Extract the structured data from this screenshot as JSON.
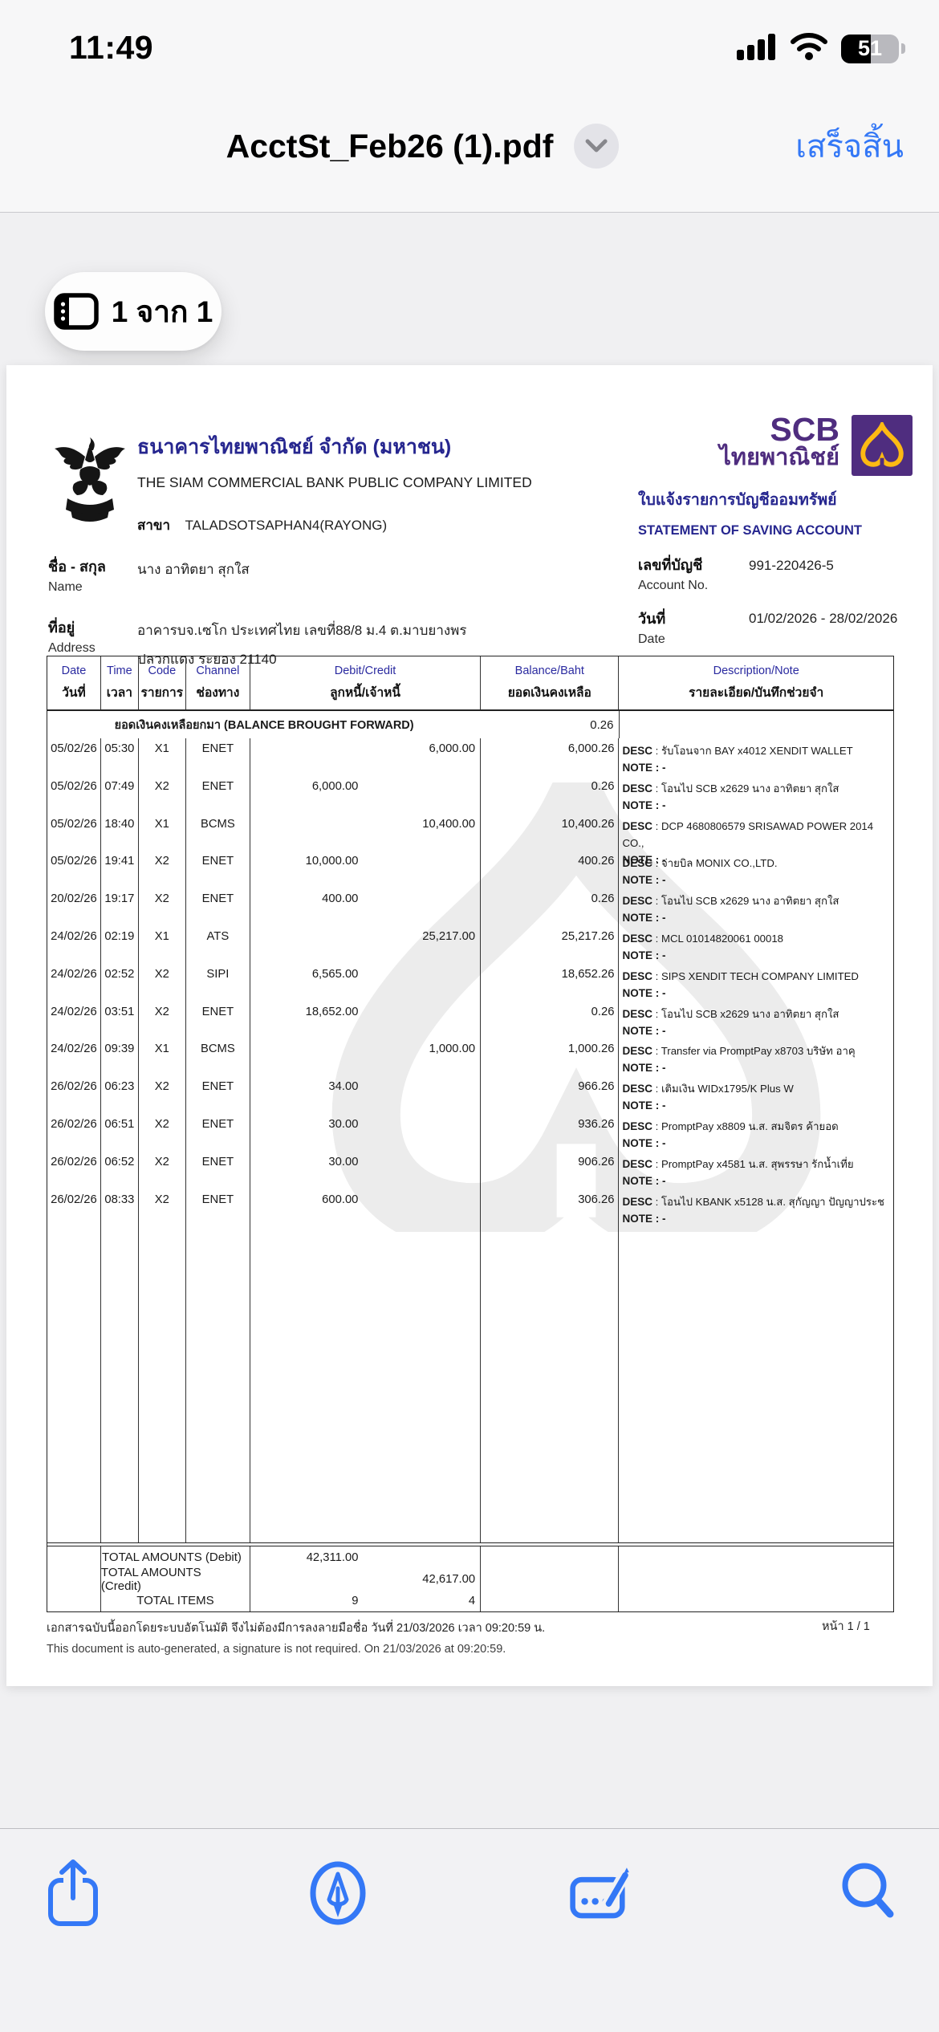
{
  "status_bar": {
    "time": "11:49",
    "battery_percent": "51"
  },
  "title_bar": {
    "filename": "AcctSt_Feb26 (1).pdf",
    "done_label": "เสร็จสิ้น"
  },
  "page_indicator": {
    "label": "1 จาก 1"
  },
  "bank_header": {
    "name_th": "ธนาคารไทยพาณิชย์ จำกัด (มหาชน)",
    "name_en": "THE SIAM COMMERCIAL BANK PUBLIC COMPANY LIMITED",
    "branch_label": "สาขา",
    "branch_value": "TALADSOTSAPHAN4(RAYONG)",
    "logo_word_top": "SCB",
    "logo_word_bottom": "ไทยพาณิชย์",
    "statement_title_th": "ใบแจ้งรายการบัญชีออมทรัพย์",
    "statement_title_en": "STATEMENT OF SAVING ACCOUNT"
  },
  "account_info": {
    "name_label_th": "ชื่อ - สกุล",
    "name_label_en": "Name",
    "name_value": "นาง อาทิตยา สุกใส",
    "address_label_th": "ที่อยู่",
    "address_label_en": "Address",
    "address_line1": "อาคารบจ.เซโก ประเทศไทย เลขที่88/8 ม.4 ต.มาบยางพร",
    "address_line2": "ปลวกแดง ระยอง 21140",
    "account_no_label_th": "เลขที่บัญชี",
    "account_no_label_en": "Account No.",
    "account_no": "991-220426-5",
    "date_label_th": "วันที่",
    "date_label_en": "Date",
    "date_range": "01/02/2026 - 28/02/2026"
  },
  "table": {
    "columns": [
      {
        "en": "Date",
        "th": "วันที่"
      },
      {
        "en": "Time",
        "th": "เวลา"
      },
      {
        "en": "Code",
        "th": "รายการ"
      },
      {
        "en": "Channel",
        "th": "ช่องทาง"
      },
      {
        "en": "Debit/Credit",
        "th": "ลูกหนี้/เจ้าหนี้"
      },
      {
        "en": "Balance/Baht",
        "th": "ยอดเงินคงเหลือ"
      },
      {
        "en": "Description/Note",
        "th": "รายละเอียด/บันทึกช่วยจำ"
      }
    ],
    "bbf_label": "ยอดเงินคงเหลือยกมา (BALANCE BROUGHT FORWARD)",
    "bbf_balance": "0.26",
    "desc_label": "DESC",
    "note_line": "NOTE : -"
  },
  "transactions": [
    {
      "date": "05/02/26",
      "time": "05:30",
      "code": "X1",
      "channel": "ENET",
      "debit": "",
      "credit": "6,000.00",
      "balance": "6,000.26",
      "desc": "รับโอนจาก BAY x4012 XENDIT WALLET"
    },
    {
      "date": "05/02/26",
      "time": "07:49",
      "code": "X2",
      "channel": "ENET",
      "debit": "6,000.00",
      "credit": "",
      "balance": "0.26",
      "desc": "โอนไป SCB x2629 นาง อาทิตยา สุกใส"
    },
    {
      "date": "05/02/26",
      "time": "18:40",
      "code": "X1",
      "channel": "BCMS",
      "debit": "",
      "credit": "10,400.00",
      "balance": "10,400.26",
      "desc": "DCP 4680806579 SRISAWAD POWER 2014 CO.,"
    },
    {
      "date": "05/02/26",
      "time": "19:41",
      "code": "X2",
      "channel": "ENET",
      "debit": "10,000.00",
      "credit": "",
      "balance": "400.26",
      "desc": "จ่ายบิล MONIX CO.,LTD."
    },
    {
      "date": "20/02/26",
      "time": "19:17",
      "code": "X2",
      "channel": "ENET",
      "debit": "400.00",
      "credit": "",
      "balance": "0.26",
      "desc": "โอนไป SCB x2629 นาง อาทิตยา สุกใส"
    },
    {
      "date": "24/02/26",
      "time": "02:19",
      "code": "X1",
      "channel": "ATS",
      "debit": "",
      "credit": "25,217.00",
      "balance": "25,217.26",
      "desc": "MCL 01014820061 00018"
    },
    {
      "date": "24/02/26",
      "time": "02:52",
      "code": "X2",
      "channel": "SIPI",
      "debit": "6,565.00",
      "credit": "",
      "balance": "18,652.26",
      "desc": "SIPS XENDIT TECH COMPANY LIMITED"
    },
    {
      "date": "24/02/26",
      "time": "03:51",
      "code": "X2",
      "channel": "ENET",
      "debit": "18,652.00",
      "credit": "",
      "balance": "0.26",
      "desc": "โอนไป SCB x2629 นาง อาทิตยา สุกใส"
    },
    {
      "date": "24/02/26",
      "time": "09:39",
      "code": "X1",
      "channel": "BCMS",
      "debit": "",
      "credit": "1,000.00",
      "balance": "1,000.26",
      "desc": "Transfer via PromptPay x8703 บริษัท อาคุ"
    },
    {
      "date": "26/02/26",
      "time": "06:23",
      "code": "X2",
      "channel": "ENET",
      "debit": "34.00",
      "credit": "",
      "balance": "966.26",
      "desc": "เติมเงิน WIDx1795/K Plus W"
    },
    {
      "date": "26/02/26",
      "time": "06:51",
      "code": "X2",
      "channel": "ENET",
      "debit": "30.00",
      "credit": "",
      "balance": "936.26",
      "desc": "PromptPay x8809 น.ส. สมจิตร ค้ายอด"
    },
    {
      "date": "26/02/26",
      "time": "06:52",
      "code": "X2",
      "channel": "ENET",
      "debit": "30.00",
      "credit": "",
      "balance": "906.26",
      "desc": "PromptPay x4581 น.ส. สุพรรษา รักน้ำเที่ย"
    },
    {
      "date": "26/02/26",
      "time": "08:33",
      "code": "X2",
      "channel": "ENET",
      "debit": "600.00",
      "credit": "",
      "balance": "306.26",
      "desc": "โอนไป KBANK x5128 น.ส. สุกัญญา ปัญญาประช"
    }
  ],
  "totals": {
    "debit_label": "TOTAL AMOUNTS (Debit)",
    "debit_value": "42,311.00",
    "credit_label": "TOTAL AMOUNTS (Credit)",
    "credit_value": "42,617.00",
    "items_label": "TOTAL ITEMS",
    "items_debit": "9",
    "items_credit": "4"
  },
  "footer": {
    "thai": "เอกสารฉบับนี้ออกโดยระบบอัตโนมัติ จึงไม่ต้องมีการลงลายมือชื่อ วันที่ 21/03/2026 เวลา 09:20:59 น.",
    "english": "This document is auto-generated, a signature is not required. On 21/03/2026 at 09:20:59.",
    "page_number": "หน้า 1 / 1"
  },
  "icons": {
    "toolbar": [
      "share-icon",
      "markup-icon",
      "signature-icon",
      "search-icon"
    ],
    "status": [
      "cellular-signal-icon",
      "wifi-icon",
      "battery-icon"
    ]
  },
  "colors": {
    "accent_blue": "#3478f6",
    "scb_purple": "#4f2d7f",
    "scb_gold": "#fdb913",
    "heading_navy": "#26268f"
  }
}
